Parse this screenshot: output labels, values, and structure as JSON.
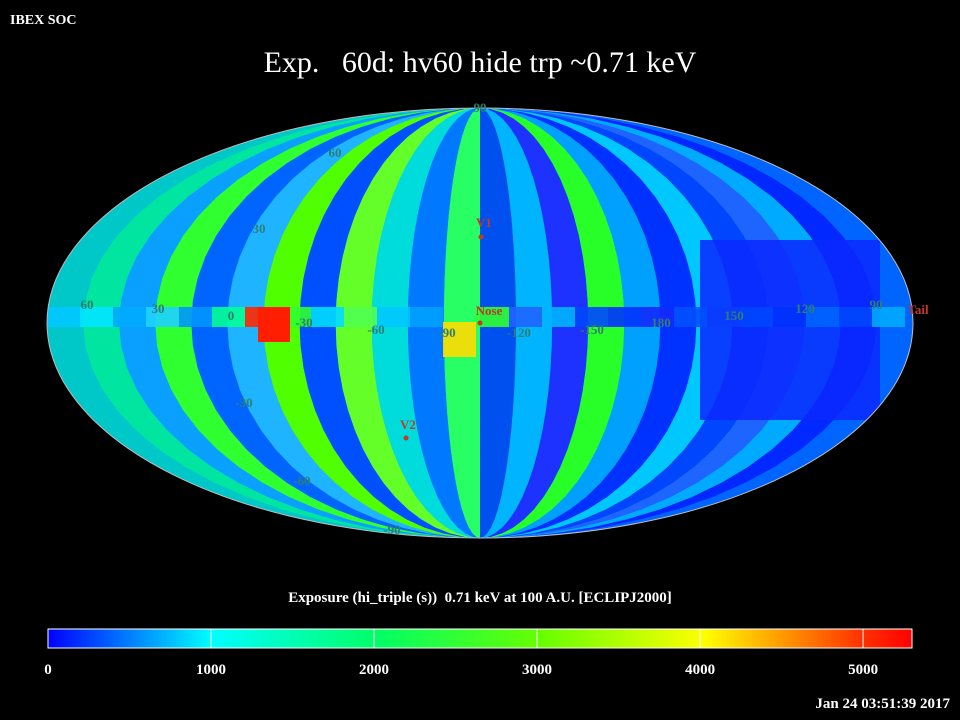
{
  "header": {
    "org": "IBEX SOC",
    "title": "Exp.   60d: hv60 hide trp ~0.71 keV",
    "timestamp": "Jan 24 03:51:39 2017"
  },
  "map": {
    "longitude_labels": [
      "60",
      "30",
      "0",
      "-30",
      "-60",
      "-90",
      "-120",
      "-150",
      "180",
      "150",
      "120",
      "90"
    ],
    "latitude_labels": [
      "90",
      "60",
      "30",
      "-30",
      "-60",
      "-90"
    ],
    "markers": [
      "V1",
      "Nose",
      "V2",
      "Tail"
    ]
  },
  "colorbar": {
    "label": "Exposure (hi_triple (s))  0.71 keV at 100 A.U. [ECLIPJ2000]",
    "lim": [
      0,
      5300
    ],
    "ticks": [
      0,
      1000,
      2000,
      3000,
      4000,
      5000
    ]
  }
}
